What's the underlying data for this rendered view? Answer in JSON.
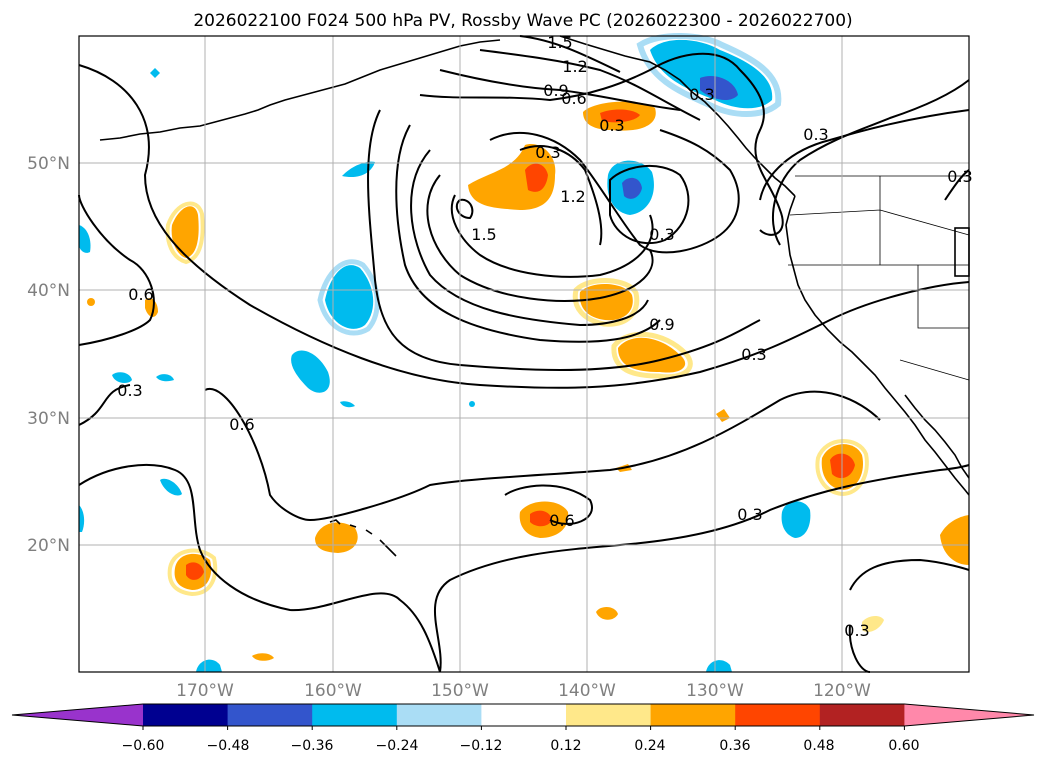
{
  "title": "2026022100 F024 500 hPa PV, Rossby Wave PC (2026022300 - 2026022700)",
  "lat_labels": [
    "50°N",
    "40°N",
    "30°N",
    "20°N"
  ],
  "lon_labels": [
    "170°W",
    "160°W",
    "150°W",
    "140°W",
    "130°W",
    "120°W"
  ],
  "colorbar": {
    "ticks": [
      "−0.60",
      "−0.48",
      "−0.36",
      "−0.24",
      "−0.12",
      "0.12",
      "0.24",
      "0.36",
      "0.48",
      "0.60"
    ],
    "colors": [
      "#9933cc",
      "#000090",
      "#3355cc",
      "#00bbee",
      "#aaddf5",
      "#ffffff",
      "#ffe88a",
      "#ffa500",
      "#ff4500",
      "#b22222",
      "#ff88aa"
    ]
  },
  "contour_labels": [
    "1.5",
    "1.2",
    "0.9",
    "0.6",
    "0.3",
    "0.3",
    "1.2",
    "1.5",
    "0.3",
    "0.3",
    "0.9",
    "0.3",
    "0.6",
    "0.3",
    "0.6",
    "0.3",
    "0.3",
    "0.6",
    "0.3",
    "0.3"
  ]
}
